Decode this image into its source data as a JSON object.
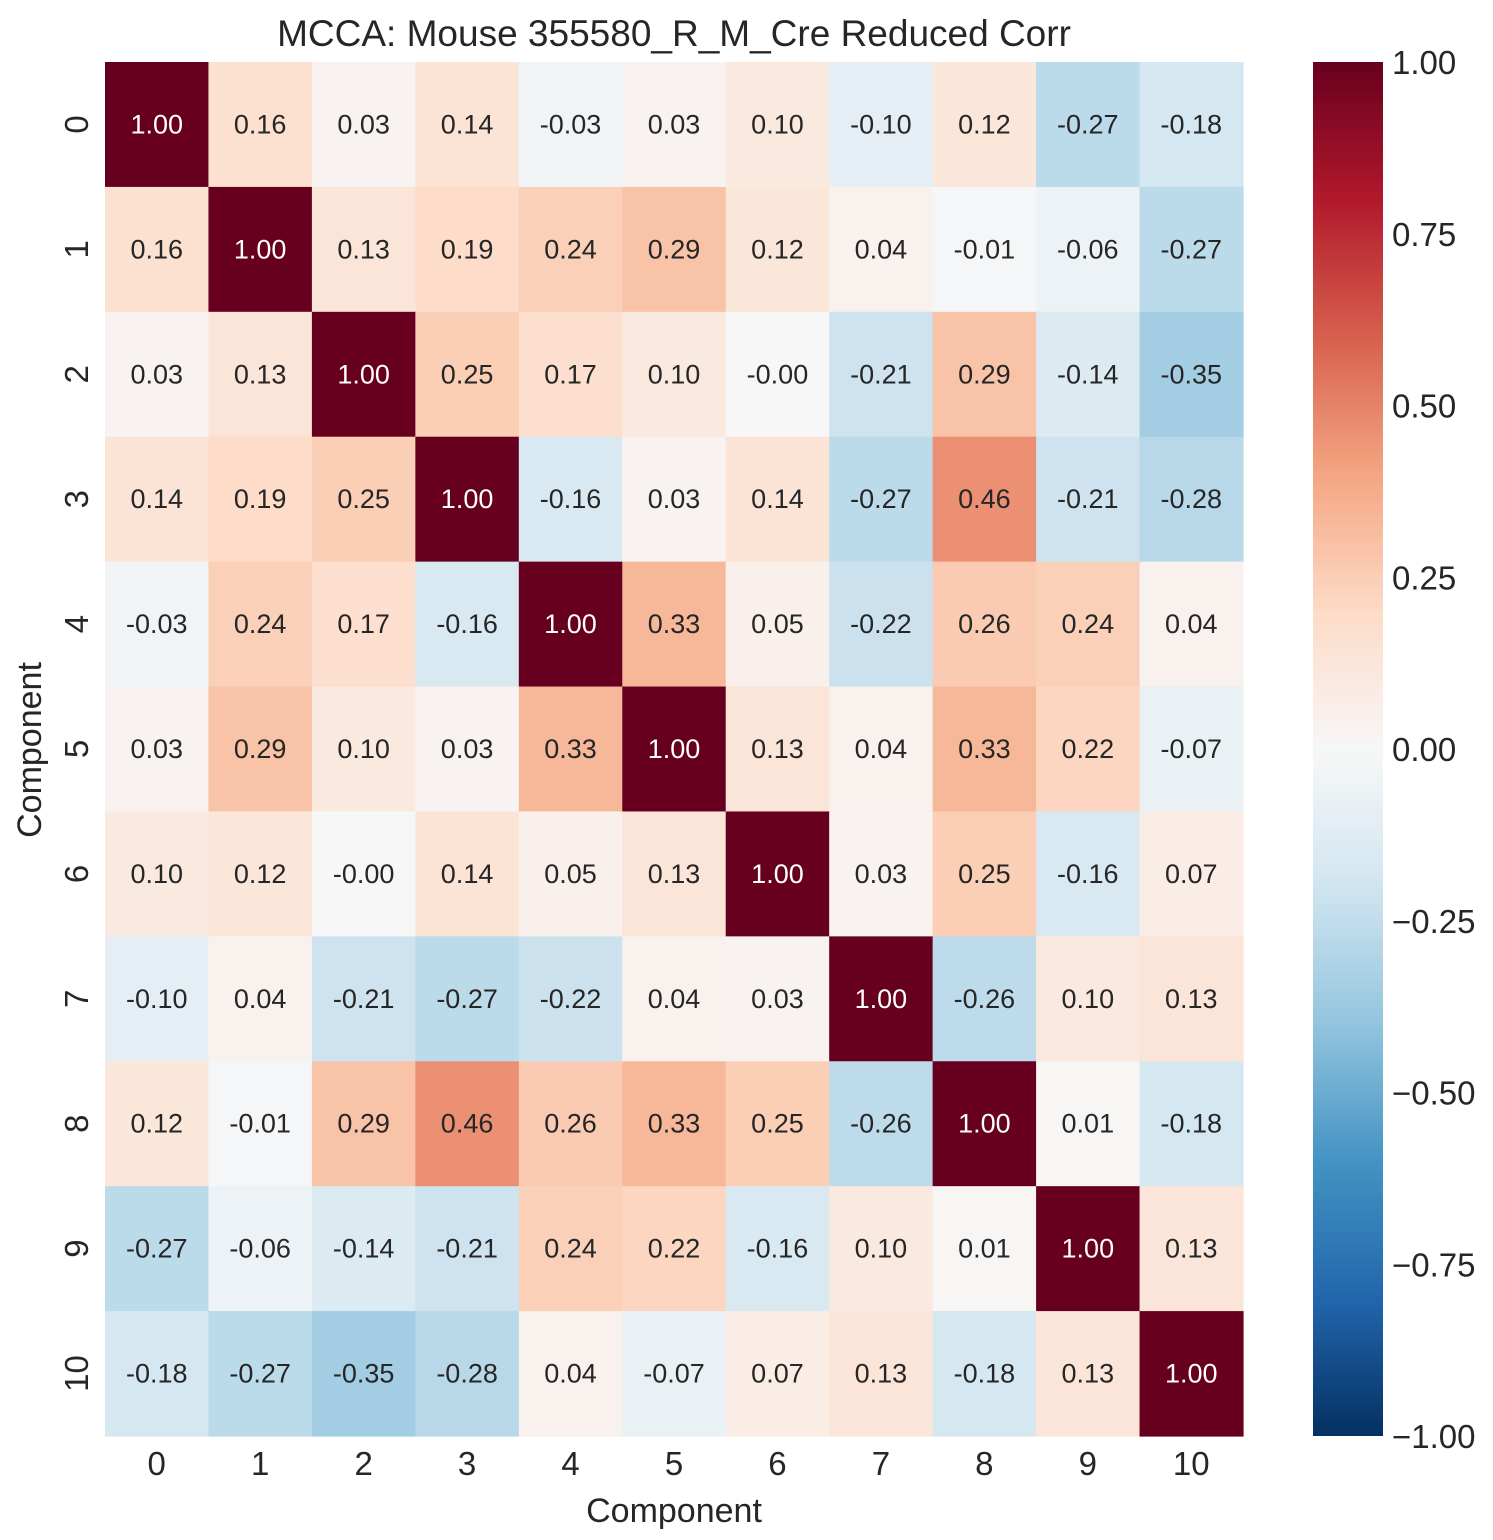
{
  "chart_data": {
    "type": "heatmap",
    "title": "MCCA: Mouse 355580_R_M_Cre Reduced Corr",
    "xlabel": "Component",
    "ylabel": "Component",
    "x_tick_labels": [
      "0",
      "1",
      "2",
      "3",
      "4",
      "5",
      "6",
      "7",
      "8",
      "9",
      "10"
    ],
    "y_tick_labels": [
      "0",
      "1",
      "2",
      "3",
      "4",
      "5",
      "6",
      "7",
      "8",
      "9",
      "10"
    ],
    "colormap": "RdBu_r",
    "colormap_stops": [
      "#053061",
      "#2166ac",
      "#4393c3",
      "#92c5de",
      "#d1e5f0",
      "#f7f7f7",
      "#fddbc7",
      "#f4a582",
      "#d6604d",
      "#b2182b",
      "#67001f"
    ],
    "vmin": -1.0,
    "vmax": 1.0,
    "colorbar_ticks": [
      1.0,
      0.75,
      0.5,
      0.25,
      0.0,
      -0.25,
      -0.5,
      -0.75,
      -1.0
    ],
    "colorbar_tick_labels": [
      "1.00",
      "0.75",
      "0.50",
      "0.25",
      "0.00",
      "−0.25",
      "−0.50",
      "−0.75",
      "−1.00"
    ],
    "annotation_format": "0.00",
    "values": [
      [
        1.0,
        0.16,
        0.03,
        0.14,
        -0.03,
        0.03,
        0.1,
        -0.1,
        0.12,
        -0.27,
        -0.18
      ],
      [
        0.16,
        1.0,
        0.13,
        0.19,
        0.24,
        0.29,
        0.12,
        0.04,
        -0.01,
        -0.06,
        -0.27
      ],
      [
        0.03,
        0.13,
        1.0,
        0.25,
        0.17,
        0.1,
        -0.0,
        -0.21,
        0.29,
        -0.14,
        -0.35
      ],
      [
        0.14,
        0.19,
        0.25,
        1.0,
        -0.16,
        0.03,
        0.14,
        -0.27,
        0.46,
        -0.21,
        -0.28
      ],
      [
        -0.03,
        0.24,
        0.17,
        -0.16,
        1.0,
        0.33,
        0.05,
        -0.22,
        0.26,
        0.24,
        0.04
      ],
      [
        0.03,
        0.29,
        0.1,
        0.03,
        0.33,
        1.0,
        0.13,
        0.04,
        0.33,
        0.22,
        -0.07
      ],
      [
        0.1,
        0.12,
        -0.0,
        0.14,
        0.05,
        0.13,
        1.0,
        0.03,
        0.25,
        -0.16,
        0.07
      ],
      [
        -0.1,
        0.04,
        -0.21,
        -0.27,
        -0.22,
        0.04,
        0.03,
        1.0,
        -0.26,
        0.1,
        0.13
      ],
      [
        0.12,
        -0.01,
        0.29,
        0.46,
        0.26,
        0.33,
        0.25,
        -0.26,
        1.0,
        0.01,
        -0.18
      ],
      [
        -0.27,
        -0.06,
        -0.14,
        -0.21,
        0.24,
        0.22,
        -0.16,
        0.1,
        0.01,
        1.0,
        0.13
      ],
      [
        -0.18,
        -0.27,
        -0.35,
        -0.28,
        0.04,
        -0.07,
        0.07,
        0.13,
        -0.18,
        0.13,
        1.0
      ]
    ]
  }
}
